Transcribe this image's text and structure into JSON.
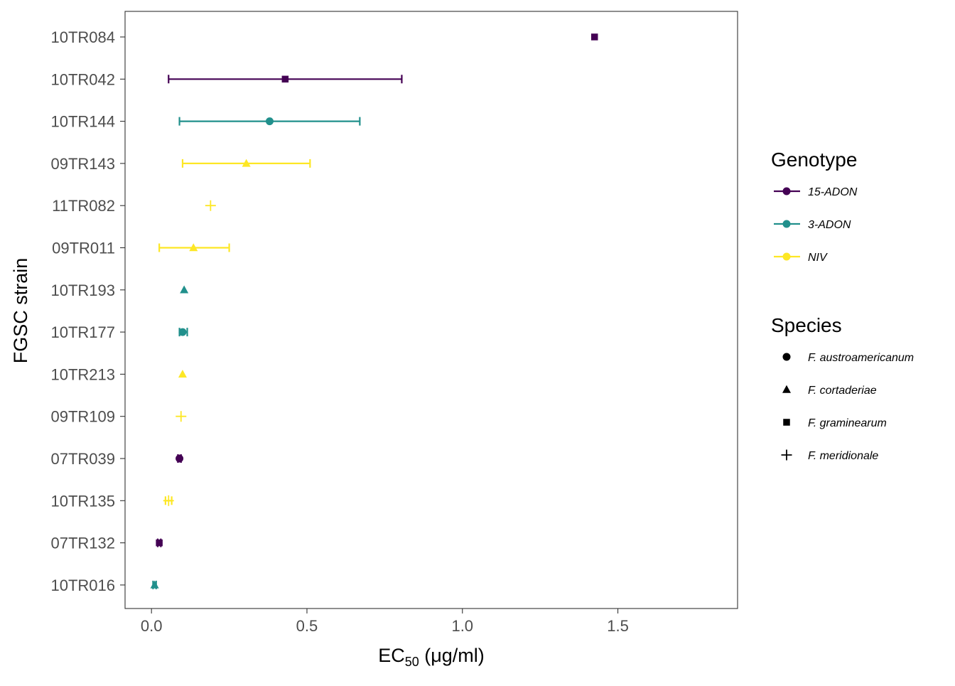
{
  "chart_data": {
    "type": "scatter",
    "title": "",
    "xlabel": {
      "main": "EC",
      "sub": "50",
      "units": " (μg/ml)"
    },
    "ylabel": "FGSC strain",
    "xlim": [
      -0.085,
      1.885
    ],
    "x_ticks": [
      0.0,
      0.5,
      1.0,
      1.5
    ],
    "x_tick_labels": [
      "0.0",
      "0.5",
      "1.0",
      "1.5"
    ],
    "grid": false,
    "legend_position": "right",
    "categories": [
      "10TR084",
      "10TR042",
      "10TR144",
      "09TR143",
      "11TR082",
      "09TR011",
      "10TR193",
      "10TR177",
      "10TR213",
      "09TR109",
      "07TR039",
      "10TR135",
      "07TR132",
      "10TR016"
    ],
    "genotype_legend": {
      "title": "Genotype",
      "entries": [
        {
          "key": "15-ADON",
          "label": "15-ADON",
          "color": "#440154"
        },
        {
          "key": "3-ADON",
          "label": "3-ADON",
          "color": "#21908C"
        },
        {
          "key": "NIV",
          "label": "NIV",
          "color": "#FDE725"
        }
      ]
    },
    "species_legend": {
      "title": "Species",
      "entries": [
        {
          "key": "circle",
          "label": "F. austroamericanum"
        },
        {
          "key": "triangle",
          "label": "F. cortaderiae"
        },
        {
          "key": "square",
          "label": "F. graminearum"
        },
        {
          "key": "plus",
          "label": "F. meridionale"
        }
      ]
    },
    "points": [
      {
        "strain": "10TR084",
        "genotype": "15-ADON",
        "shape": "square",
        "x": 1.425,
        "xmin": null,
        "xmax": null
      },
      {
        "strain": "10TR042",
        "genotype": "15-ADON",
        "shape": "square",
        "x": 0.43,
        "xmin": 0.055,
        "xmax": 0.805
      },
      {
        "strain": "10TR144",
        "genotype": "3-ADON",
        "shape": "circle",
        "x": 0.38,
        "xmin": 0.09,
        "xmax": 0.67
      },
      {
        "strain": "09TR143",
        "genotype": "NIV",
        "shape": "triangle",
        "x": 0.305,
        "xmin": 0.1,
        "xmax": 0.51
      },
      {
        "strain": "11TR082",
        "genotype": "NIV",
        "shape": "plus",
        "x": 0.19,
        "xmin": null,
        "xmax": null
      },
      {
        "strain": "09TR011",
        "genotype": "NIV",
        "shape": "triangle",
        "x": 0.135,
        "xmin": 0.025,
        "xmax": 0.25
      },
      {
        "strain": "10TR193",
        "genotype": "3-ADON",
        "shape": "triangle",
        "x": 0.105,
        "xmin": null,
        "xmax": null
      },
      {
        "strain": "10TR177",
        "genotype": "3-ADON",
        "shape": "circle",
        "x": 0.1,
        "xmin": 0.09,
        "xmax": 0.115
      },
      {
        "strain": "10TR213",
        "genotype": "NIV",
        "shape": "triangle",
        "x": 0.1,
        "xmin": null,
        "xmax": null
      },
      {
        "strain": "09TR109",
        "genotype": "NIV",
        "shape": "plus",
        "x": 0.095,
        "xmin": null,
        "xmax": null
      },
      {
        "strain": "07TR039",
        "genotype": "15-ADON",
        "shape": "circle",
        "x": 0.09,
        "xmin": 0.085,
        "xmax": 0.095
      },
      {
        "strain": "10TR135",
        "genotype": "NIV",
        "shape": "plus",
        "x": 0.055,
        "xmin": 0.045,
        "xmax": 0.065
      },
      {
        "strain": "07TR132",
        "genotype": "15-ADON",
        "shape": "square",
        "x": 0.025,
        "xmin": 0.02,
        "xmax": 0.03
      },
      {
        "strain": "10TR016",
        "genotype": "3-ADON",
        "shape": "triangle",
        "x": 0.01,
        "xmin": 0.005,
        "xmax": 0.015
      }
    ]
  }
}
